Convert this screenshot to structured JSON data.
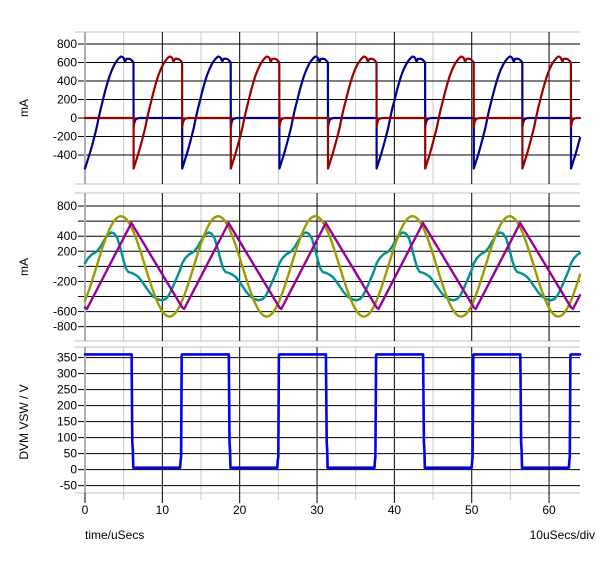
{
  "chart_data": {
    "type": "line",
    "description": "Three stacked simulator waveform panels sharing one time axis",
    "x_axis": {
      "title": "time/uSecs",
      "scale_note": "10uSecs/div",
      "min": 0,
      "max": 64,
      "major_ticks": [
        0,
        10,
        20,
        30,
        40,
        50,
        60
      ],
      "minor_ticks": [
        5,
        15,
        25,
        35,
        45,
        55
      ]
    },
    "colors": {
      "grid_major": "#000000",
      "grid_minor": "#c9c9c9",
      "axis_line": "#b0b0b0",
      "panel_edge": "#c0c0c0",
      "text": "#000000"
    },
    "panels": [
      {
        "unit": "mA",
        "ymin": -713,
        "ymax": 930,
        "gridlines": [
          {
            "v": 800,
            "label": "800"
          },
          {
            "v": 600,
            "label": "600"
          },
          {
            "v": 400,
            "label": "400"
          },
          {
            "v": 200,
            "label": "200"
          },
          {
            "v": 0,
            "label": "0"
          },
          {
            "v": -200,
            "label": "-200"
          },
          {
            "v": -400,
            "label": "-400"
          }
        ],
        "series": [
          {
            "id": "panel1-blue",
            "color": "#000092",
            "width": 2.2,
            "type": "periodic",
            "period": 12.566,
            "offset": 0,
            "pre_value": null,
            "points": [
              [
                0,
                -545
              ],
              [
                0.3,
                -468
              ],
              [
                0.6,
                -390
              ],
              [
                0.9,
                -300
              ],
              [
                1.2,
                -205
              ],
              [
                1.5,
                -105
              ],
              [
                1.75,
                -5
              ],
              [
                2.0,
                90
              ],
              [
                2.3,
                190
              ],
              [
                2.6,
                290
              ],
              [
                2.9,
                380
              ],
              [
                3.2,
                460
              ],
              [
                3.5,
                525
              ],
              [
                3.8,
                578
              ],
              [
                4.1,
                618
              ],
              [
                4.4,
                648
              ],
              [
                4.65,
                665
              ],
              [
                4.85,
                660
              ],
              [
                5.0,
                648
              ],
              [
                5.1,
                622
              ],
              [
                5.2,
                612
              ],
              [
                5.35,
                640
              ],
              [
                5.6,
                641
              ],
              [
                5.85,
                637
              ],
              [
                6.05,
                622
              ],
              [
                6.27,
                600
              ],
              [
                6.283,
                -95
              ],
              [
                6.4,
                -42
              ],
              [
                6.55,
                -15
              ],
              [
                6.8,
                -3
              ],
              [
                7.1,
                0
              ],
              [
                12.566,
                0
              ]
            ]
          },
          {
            "id": "panel1-red",
            "color": "#990000",
            "width": 2.2,
            "type": "periodic",
            "period": 12.566,
            "offset": 6.283,
            "pre_value": 0,
            "points": [
              [
                0,
                -545
              ],
              [
                0.3,
                -468
              ],
              [
                0.6,
                -390
              ],
              [
                0.9,
                -300
              ],
              [
                1.2,
                -205
              ],
              [
                1.5,
                -105
              ],
              [
                1.75,
                -5
              ],
              [
                2.0,
                90
              ],
              [
                2.3,
                190
              ],
              [
                2.6,
                290
              ],
              [
                2.9,
                380
              ],
              [
                3.2,
                460
              ],
              [
                3.5,
                525
              ],
              [
                3.8,
                578
              ],
              [
                4.1,
                618
              ],
              [
                4.4,
                648
              ],
              [
                4.65,
                665
              ],
              [
                4.85,
                660
              ],
              [
                5.0,
                648
              ],
              [
                5.1,
                622
              ],
              [
                5.2,
                612
              ],
              [
                5.35,
                640
              ],
              [
                5.6,
                641
              ],
              [
                5.85,
                637
              ],
              [
                6.05,
                622
              ],
              [
                6.27,
                600
              ],
              [
                6.283,
                -95
              ],
              [
                6.4,
                -42
              ],
              [
                6.55,
                -15
              ],
              [
                6.8,
                -3
              ],
              [
                7.1,
                0
              ],
              [
                12.566,
                0
              ]
            ]
          }
        ]
      },
      {
        "unit": "mA",
        "ymin": -990,
        "ymax": 973,
        "gridlines": [
          {
            "v": 800,
            "label": "800"
          },
          {
            "v": 600,
            "label": ""
          },
          {
            "v": 400,
            "label": "400"
          },
          {
            "v": 200,
            "label": "200"
          },
          {
            "v": 0,
            "label": ""
          },
          {
            "v": -200,
            "label": "-200"
          },
          {
            "v": -400,
            "label": ""
          },
          {
            "v": -600,
            "label": "-600"
          },
          {
            "v": -800,
            "label": "-800"
          }
        ],
        "series": [
          {
            "id": "panel2-teal",
            "color": "#009191",
            "width": 2.4,
            "type": "periodic",
            "period": 12.566,
            "offset": 0,
            "pre_value": null,
            "points": [
              [
                0,
                40
              ],
              [
                0.4,
                110
              ],
              [
                0.9,
                160
              ],
              [
                1.5,
                195
              ],
              [
                2.0,
                260
              ],
              [
                2.5,
                350
              ],
              [
                3.0,
                425
              ],
              [
                3.4,
                450
              ],
              [
                3.8,
                435
              ],
              [
                4.2,
                370
              ],
              [
                4.6,
                230
              ],
              [
                5.0,
                70
              ],
              [
                5.3,
                -30
              ],
              [
                5.6,
                -75
              ],
              [
                6.0,
                -85
              ],
              [
                6.4,
                -105
              ],
              [
                6.9,
                -140
              ],
              [
                7.3,
                -190
              ],
              [
                7.8,
                -265
              ],
              [
                8.3,
                -340
              ],
              [
                8.8,
                -400
              ],
              [
                9.4,
                -435
              ],
              [
                9.9,
                -450
              ],
              [
                10.4,
                -435
              ],
              [
                10.8,
                -390
              ],
              [
                11.2,
                -310
              ],
              [
                11.6,
                -215
              ],
              [
                12.0,
                -120
              ],
              [
                12.3,
                -45
              ],
              [
                12.566,
                40
              ]
            ]
          },
          {
            "id": "panel2-olive",
            "color": "#9c9c00",
            "width": 2.4,
            "type": "sine",
            "amplitude": 665,
            "period": 12.566,
            "phase": 1.5
          },
          {
            "id": "panel2-purple",
            "color": "#990099",
            "width": 2.4,
            "type": "periodic",
            "period": 12.566,
            "offset": 0,
            "pre_value": null,
            "points": [
              [
                0,
                -545
              ],
              [
                0.25,
                -566
              ],
              [
                6.0,
                575
              ],
              [
                12.566,
                -545
              ]
            ]
          }
        ]
      },
      {
        "unit": "DVM VSW / V",
        "ymin": -73,
        "ymax": 383,
        "gridlines": [
          {
            "v": 350,
            "label": "350"
          },
          {
            "v": 300,
            "label": "300"
          },
          {
            "v": 250,
            "label": "250"
          },
          {
            "v": 200,
            "label": "200"
          },
          {
            "v": 150,
            "label": "150"
          },
          {
            "v": 100,
            "label": "100"
          },
          {
            "v": 50,
            "label": "50"
          },
          {
            "v": 0,
            "label": "0"
          },
          {
            "v": -50,
            "label": "-50"
          }
        ],
        "series": [
          {
            "id": "panel3-blue",
            "color": "#0202ee",
            "width": 2.6,
            "type": "periodic",
            "period": 12.566,
            "offset": 0,
            "pre_value": null,
            "points": [
              [
                0,
                360
              ],
              [
                6.02,
                360
              ],
              [
                6.12,
                85
              ],
              [
                6.18,
                62
              ],
              [
                6.24,
                6
              ],
              [
                12.3,
                6
              ],
              [
                12.36,
                30
              ],
              [
                12.42,
                40
              ],
              [
                12.5,
                358
              ],
              [
                12.566,
                360
              ]
            ]
          }
        ]
      }
    ]
  }
}
